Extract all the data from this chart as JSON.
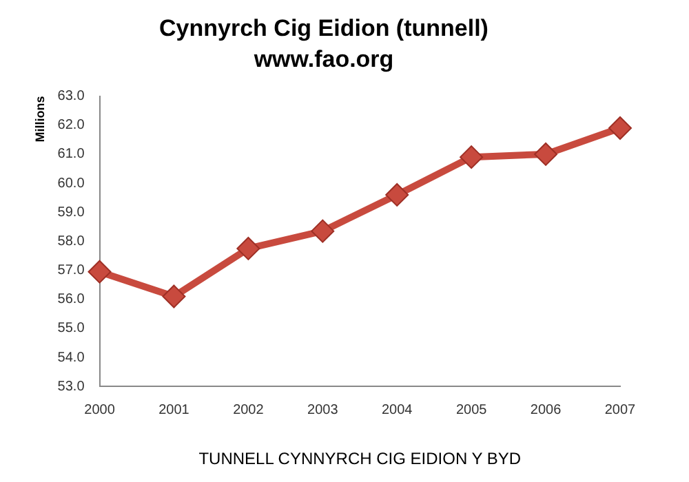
{
  "chart_data": {
    "type": "line",
    "title": "Cynnyrch Cig Eidion (tunnell)",
    "subtitle": "www.fao.org",
    "xlabel": "TUNNELL CYNNYRCH CIG EIDION Y BYD",
    "ylabel": "Millions",
    "categories": [
      "2000",
      "2001",
      "2002",
      "2003",
      "2004",
      "2005",
      "2006",
      "2007"
    ],
    "series": [
      {
        "color": "#c84a3e",
        "values": [
          56.95,
          56.1,
          57.75,
          58.35,
          59.6,
          60.9,
          61.0,
          61.9
        ]
      }
    ],
    "ylim": [
      53,
      63
    ],
    "yticks": [
      {
        "value": 53,
        "label": "53.0"
      },
      {
        "value": 54,
        "label": "54.0"
      },
      {
        "value": 55,
        "label": "55.0"
      },
      {
        "value": 56,
        "label": "56.0"
      },
      {
        "value": 57,
        "label": "57.0"
      },
      {
        "value": 58,
        "label": "58.0"
      },
      {
        "value": 59,
        "label": "59.0"
      },
      {
        "value": 60,
        "label": "60.0"
      },
      {
        "value": 61,
        "label": "61.0"
      },
      {
        "value": 62,
        "label": "62.0"
      },
      {
        "value": 63,
        "label": "63.0"
      }
    ],
    "marker": "diamond",
    "line_style": "solid",
    "grid": false,
    "legend": false
  }
}
